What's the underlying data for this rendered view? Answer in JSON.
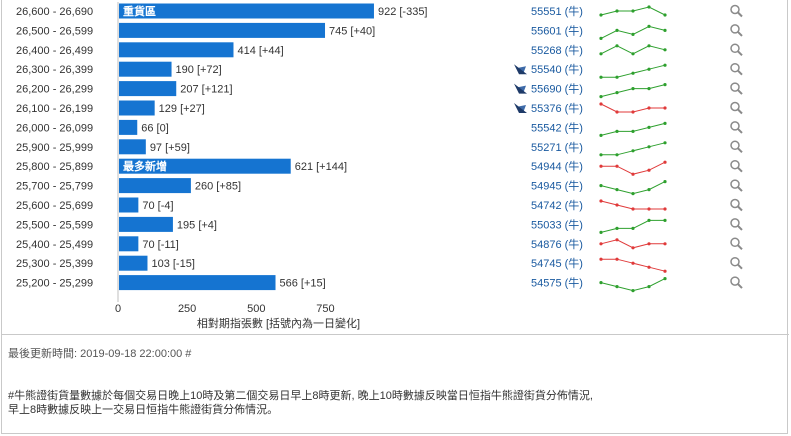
{
  "chart_data": {
    "type": "bar",
    "orientation": "horizontal",
    "xlabel": "相對期指張數 [括號內為一日變化]",
    "xlim": [
      0,
      980
    ],
    "x_ticks": [
      "0",
      "250",
      "500",
      "750"
    ],
    "x_tick_values": [
      0,
      250,
      500,
      750
    ],
    "colors": {
      "bar": "#1574d1",
      "up": "#2ea02e",
      "down": "#e03a3a",
      "link": "#1a5aa0"
    },
    "rows": [
      {
        "range": "26,600 - 26,690",
        "value": 922,
        "change": "[-335]",
        "badge": "重貨區",
        "warrant": "55551 (牛)",
        "icon": false,
        "spark": [
          3,
          2,
          2,
          1,
          3
        ],
        "trend": "up"
      },
      {
        "range": "26,500 - 26,599",
        "value": 745,
        "change": "[+40]",
        "badge": "",
        "warrant": "55601 (牛)",
        "icon": false,
        "spark": [
          4,
          2,
          3,
          1,
          2
        ],
        "trend": "up"
      },
      {
        "range": "26,400 - 26,499",
        "value": 414,
        "change": "[+44]",
        "badge": "",
        "warrant": "55268 (牛)",
        "icon": false,
        "spark": [
          3,
          1,
          3,
          1,
          2
        ],
        "trend": "up"
      },
      {
        "range": "26,300 - 26,399",
        "value": 190,
        "change": "[+72]",
        "badge": "",
        "warrant": "55540 (牛)",
        "icon": true,
        "spark": [
          4,
          4,
          3,
          2,
          1
        ],
        "trend": "up"
      },
      {
        "range": "26,200 - 26,299",
        "value": 207,
        "change": "[+121]",
        "badge": "",
        "warrant": "55690 (牛)",
        "icon": true,
        "spark": [
          4,
          3,
          2,
          2,
          1
        ],
        "trend": "up"
      },
      {
        "range": "26,100 - 26,199",
        "value": 129,
        "change": "[+27]",
        "badge": "",
        "warrant": "55376 (牛)",
        "icon": true,
        "spark": [
          1,
          3,
          3,
          2,
          2
        ],
        "trend": "down"
      },
      {
        "range": "26,000 - 26,099",
        "value": 66,
        "change": "[0]",
        "badge": "",
        "warrant": "55542 (牛)",
        "icon": false,
        "spark": [
          4,
          3,
          3,
          2,
          1
        ],
        "trend": "up"
      },
      {
        "range": "25,900 - 25,999",
        "value": 97,
        "change": "[+59]",
        "badge": "",
        "warrant": "55271 (牛)",
        "icon": false,
        "spark": [
          4,
          4,
          3,
          2,
          1
        ],
        "trend": "up"
      },
      {
        "range": "25,800 - 25,899",
        "value": 621,
        "change": "[+144]",
        "badge": "最多新增",
        "warrant": "54944 (牛)",
        "icon": false,
        "spark": [
          2,
          2,
          4,
          3,
          1
        ],
        "trend": "down"
      },
      {
        "range": "25,700 - 25,799",
        "value": 260,
        "change": "[+85]",
        "badge": "",
        "warrant": "54945 (牛)",
        "icon": false,
        "spark": [
          2,
          3,
          4,
          3,
          1
        ],
        "trend": "up"
      },
      {
        "range": "25,600 - 25,699",
        "value": 70,
        "change": "[-4]",
        "badge": "",
        "warrant": "54742 (牛)",
        "icon": false,
        "spark": [
          1,
          2,
          3,
          3,
          3
        ],
        "trend": "down"
      },
      {
        "range": "25,500 - 25,599",
        "value": 195,
        "change": "[+4]",
        "badge": "",
        "warrant": "55033 (牛)",
        "icon": false,
        "spark": [
          4,
          3,
          3,
          1,
          1
        ],
        "trend": "up"
      },
      {
        "range": "25,400 - 25,499",
        "value": 70,
        "change": "[-11]",
        "badge": "",
        "warrant": "54876 (牛)",
        "icon": false,
        "spark": [
          2,
          1,
          3,
          2,
          2
        ],
        "trend": "down"
      },
      {
        "range": "25,300 - 25,399",
        "value": 103,
        "change": "[-15]",
        "badge": "",
        "warrant": "54745 (牛)",
        "icon": false,
        "spark": [
          1,
          1,
          2,
          3,
          4
        ],
        "trend": "down"
      },
      {
        "range": "25,200 - 25,299",
        "value": 566,
        "change": "[+15]",
        "badge": "",
        "warrant": "54575 (牛)",
        "icon": false,
        "spark": [
          2,
          3,
          4,
          3,
          1
        ],
        "trend": "up"
      }
    ]
  },
  "icons": {
    "row_icon": "flag-icon",
    "magnifier": "magnifier-icon"
  },
  "footer": {
    "last_updated": "最後更新時間: 2019-09-18 22:00:00 #",
    "notes": [
      "#牛熊證街貨量數據於每個交易日晚上10時及第二個交易日早上8時更新, 晚上10時數據反映當日恒指牛熊證街貨分佈情況,",
      "早上8時數據反映上一交易日恒指牛熊證街貨分佈情況。"
    ]
  }
}
